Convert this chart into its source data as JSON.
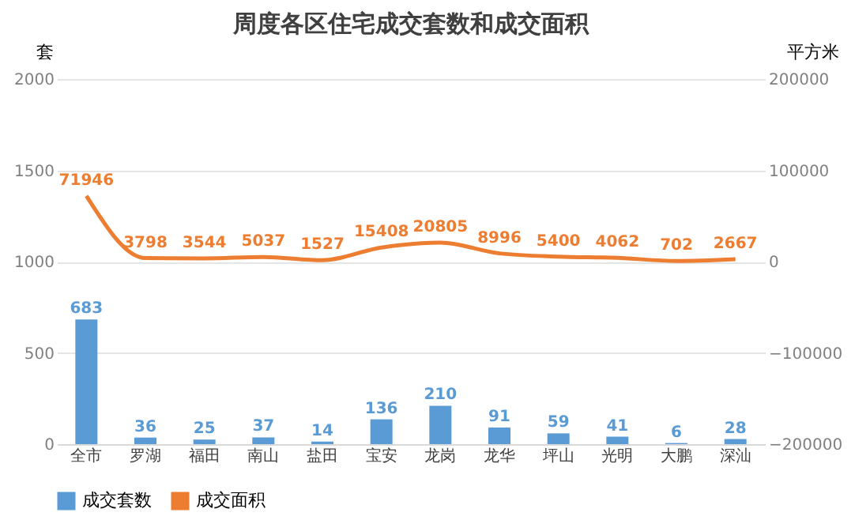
{
  "chart_data": {
    "type": "bar",
    "title": "周度各区住宅成交套数和成交面积",
    "ylabel": "套",
    "y2label": "平方米",
    "categories": [
      "全市",
      "罗湖",
      "福田",
      "南山",
      "盐田",
      "宝安",
      "龙岗",
      "龙华",
      "坪山",
      "光明",
      "大鹏",
      "深汕"
    ],
    "series": [
      {
        "name": "成交套数",
        "color": "#5b9bd5",
        "values": [
          683,
          36,
          25,
          37,
          14,
          136,
          210,
          91,
          59,
          41,
          6,
          28
        ]
      },
      {
        "name": "成交面积",
        "type": "line",
        "axis": "y2",
        "color": "#ed7d31",
        "values": [
          71946,
          3798,
          3544,
          5037,
          1527,
          15408,
          20805,
          8996,
          5400,
          4062,
          702,
          2667
        ]
      }
    ],
    "ylim": [
      0,
      2000
    ],
    "yticks": [
      0,
      500,
      1000,
      1500,
      2000
    ],
    "y2lim": [
      -200000,
      200000
    ],
    "y2ticks": [
      -200000,
      -100000,
      0,
      100000,
      200000
    ],
    "data_labels": true,
    "grid": "y",
    "legend": "bottom"
  }
}
